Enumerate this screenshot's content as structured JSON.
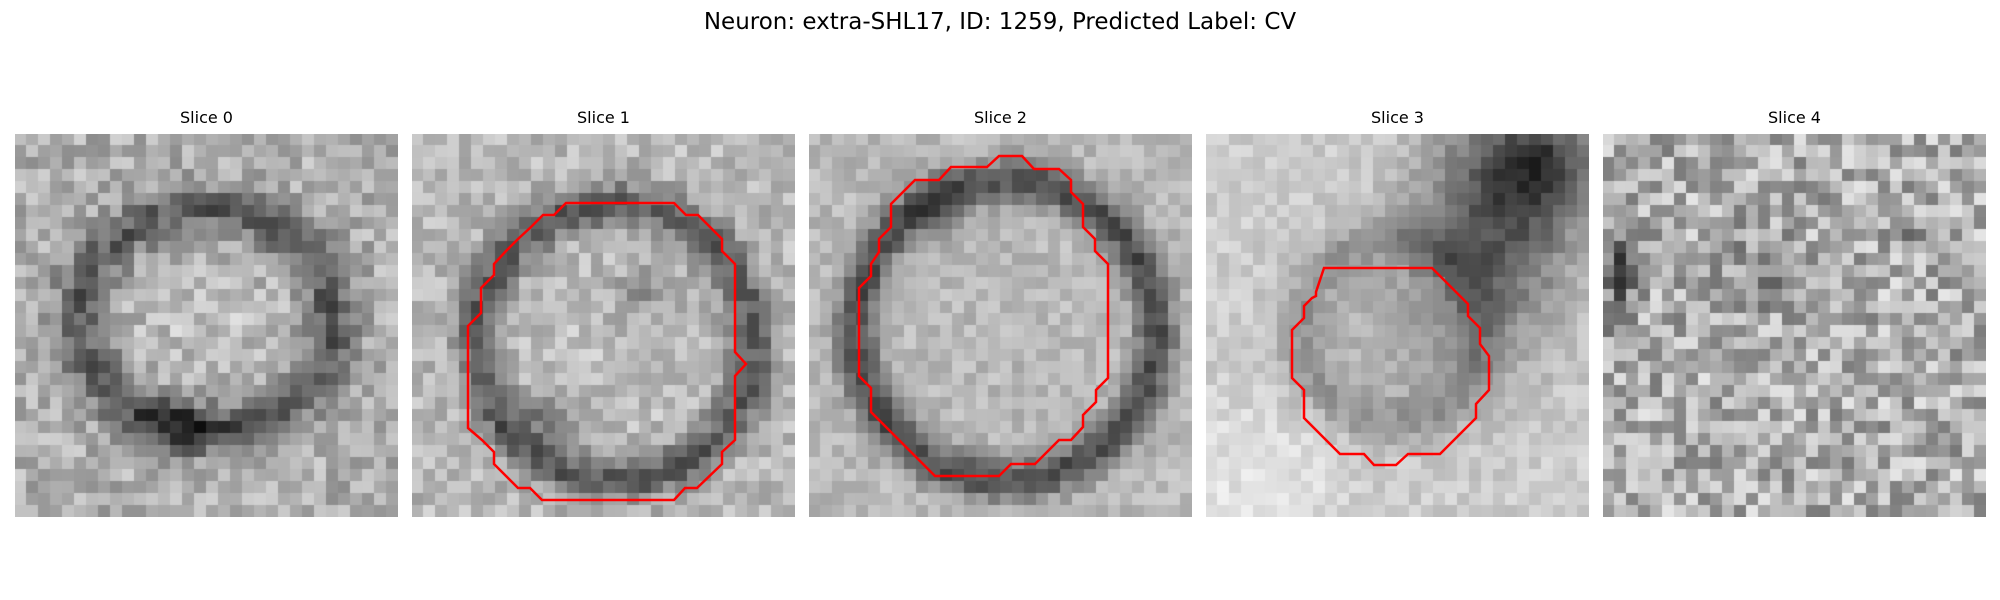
{
  "figure": {
    "title": "Neuron: extra-SHL17, ID: 1259, Predicted Label: CV"
  },
  "panels": [
    {
      "title": "Slice 0"
    },
    {
      "title": "Slice 1"
    },
    {
      "title": "Slice 2"
    },
    {
      "title": "Slice 3"
    },
    {
      "title": "Slice 4"
    }
  ],
  "colors": {
    "contour": "#ff0000",
    "colormap": "gray"
  }
}
